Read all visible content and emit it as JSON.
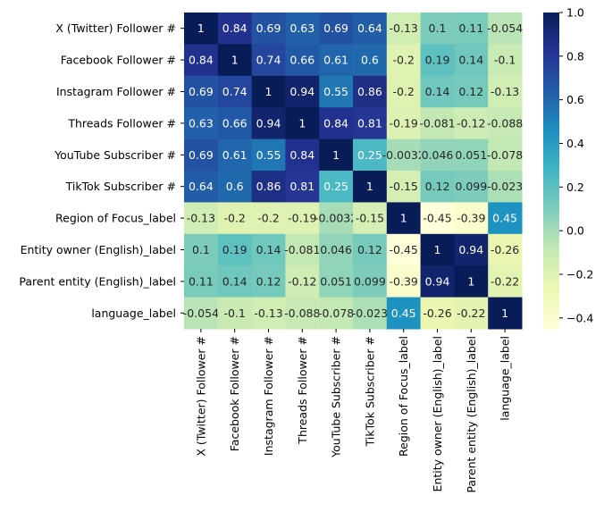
{
  "chart_data": {
    "type": "heatmap",
    "title": "",
    "colormap": "YlGnBu",
    "colormap_stops": [
      "#ffffd9",
      "#edf8b1",
      "#c7e9b4",
      "#7fcdbb",
      "#41b6c4",
      "#1d91c0",
      "#225ea8",
      "#253494",
      "#081d58"
    ],
    "vlim": [
      -0.45,
      1.0
    ],
    "colorbar_ticks": [
      "1.0",
      "0.8",
      "0.6",
      "0.4",
      "0.2",
      "0.0",
      "−0.2",
      "−0.4"
    ],
    "colorbar_tick_values": [
      1.0,
      0.8,
      0.6,
      0.4,
      0.2,
      0.0,
      -0.2,
      -0.4
    ],
    "labels": [
      "X (Twitter) Follower #",
      "Facebook Follower #",
      "Instagram Follower #",
      "Threads Follower #",
      "YouTube Subscriber #",
      "TikTok Subscriber #",
      "Region of Focus_label",
      "Entity owner (English)_label",
      "Parent entity (English)_label",
      "language_label"
    ],
    "annotations": [
      [
        "1",
        "0.84",
        "0.69",
        "0.63",
        "0.69",
        "0.64",
        "-0.13",
        "0.1",
        "0.11",
        "-0.054"
      ],
      [
        "0.84",
        "1",
        "0.74",
        "0.66",
        "0.61",
        "0.6",
        "-0.2",
        "0.19",
        "0.14",
        "-0.1"
      ],
      [
        "0.69",
        "0.74",
        "1",
        "0.94",
        "0.55",
        "0.86",
        "-0.2",
        "0.14",
        "0.12",
        "-0.13"
      ],
      [
        "0.63",
        "0.66",
        "0.94",
        "1",
        "0.84",
        "0.81",
        "-0.19",
        "-0.081",
        "-0.12",
        "-0.088"
      ],
      [
        "0.69",
        "0.61",
        "0.55",
        "0.84",
        "1",
        "0.25",
        "-0.0032",
        "0.046",
        "0.051",
        "-0.078"
      ],
      [
        "0.64",
        "0.6",
        "0.86",
        "0.81",
        "0.25",
        "1",
        "-0.15",
        "0.12",
        "0.099",
        "-0.023"
      ],
      [
        "-0.13",
        "-0.2",
        "-0.2",
        "-0.19",
        "-0.0032",
        "-0.15",
        "1",
        "-0.45",
        "-0.39",
        "0.45"
      ],
      [
        "0.1",
        "0.19",
        "0.14",
        "-0.081",
        "0.046",
        "0.12",
        "-0.45",
        "1",
        "0.94",
        "-0.26"
      ],
      [
        "0.11",
        "0.14",
        "0.12",
        "-0.12",
        "0.051",
        "0.099",
        "-0.39",
        "0.94",
        "1",
        "-0.22"
      ],
      [
        "-0.054",
        "-0.1",
        "-0.13",
        "-0.088",
        "-0.078",
        "-0.023",
        "0.45",
        "-0.26",
        "-0.22",
        "1"
      ]
    ]
  }
}
